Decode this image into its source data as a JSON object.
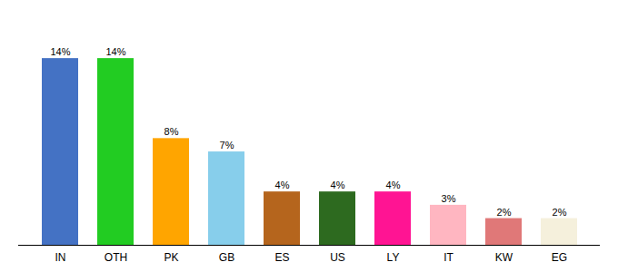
{
  "chart_data": {
    "type": "bar",
    "categories": [
      "IN",
      "OTH",
      "PK",
      "GB",
      "ES",
      "US",
      "LY",
      "IT",
      "KW",
      "EG"
    ],
    "values": [
      14,
      14,
      8,
      7,
      4,
      4,
      4,
      3,
      2,
      2
    ],
    "value_labels": [
      "14%",
      "14%",
      "8%",
      "7%",
      "4%",
      "4%",
      "4%",
      "3%",
      "2%",
      "2%"
    ],
    "colors": [
      "#4472C4",
      "#22CC22",
      "#FFA500",
      "#87CEEB",
      "#B5651D",
      "#2D6A1F",
      "#FF1493",
      "#FFB6C1",
      "#E07878",
      "#F5F0DC"
    ],
    "ylim": [
      0,
      17
    ],
    "data_labels": true,
    "tick_labels": "x",
    "grid": false
  }
}
